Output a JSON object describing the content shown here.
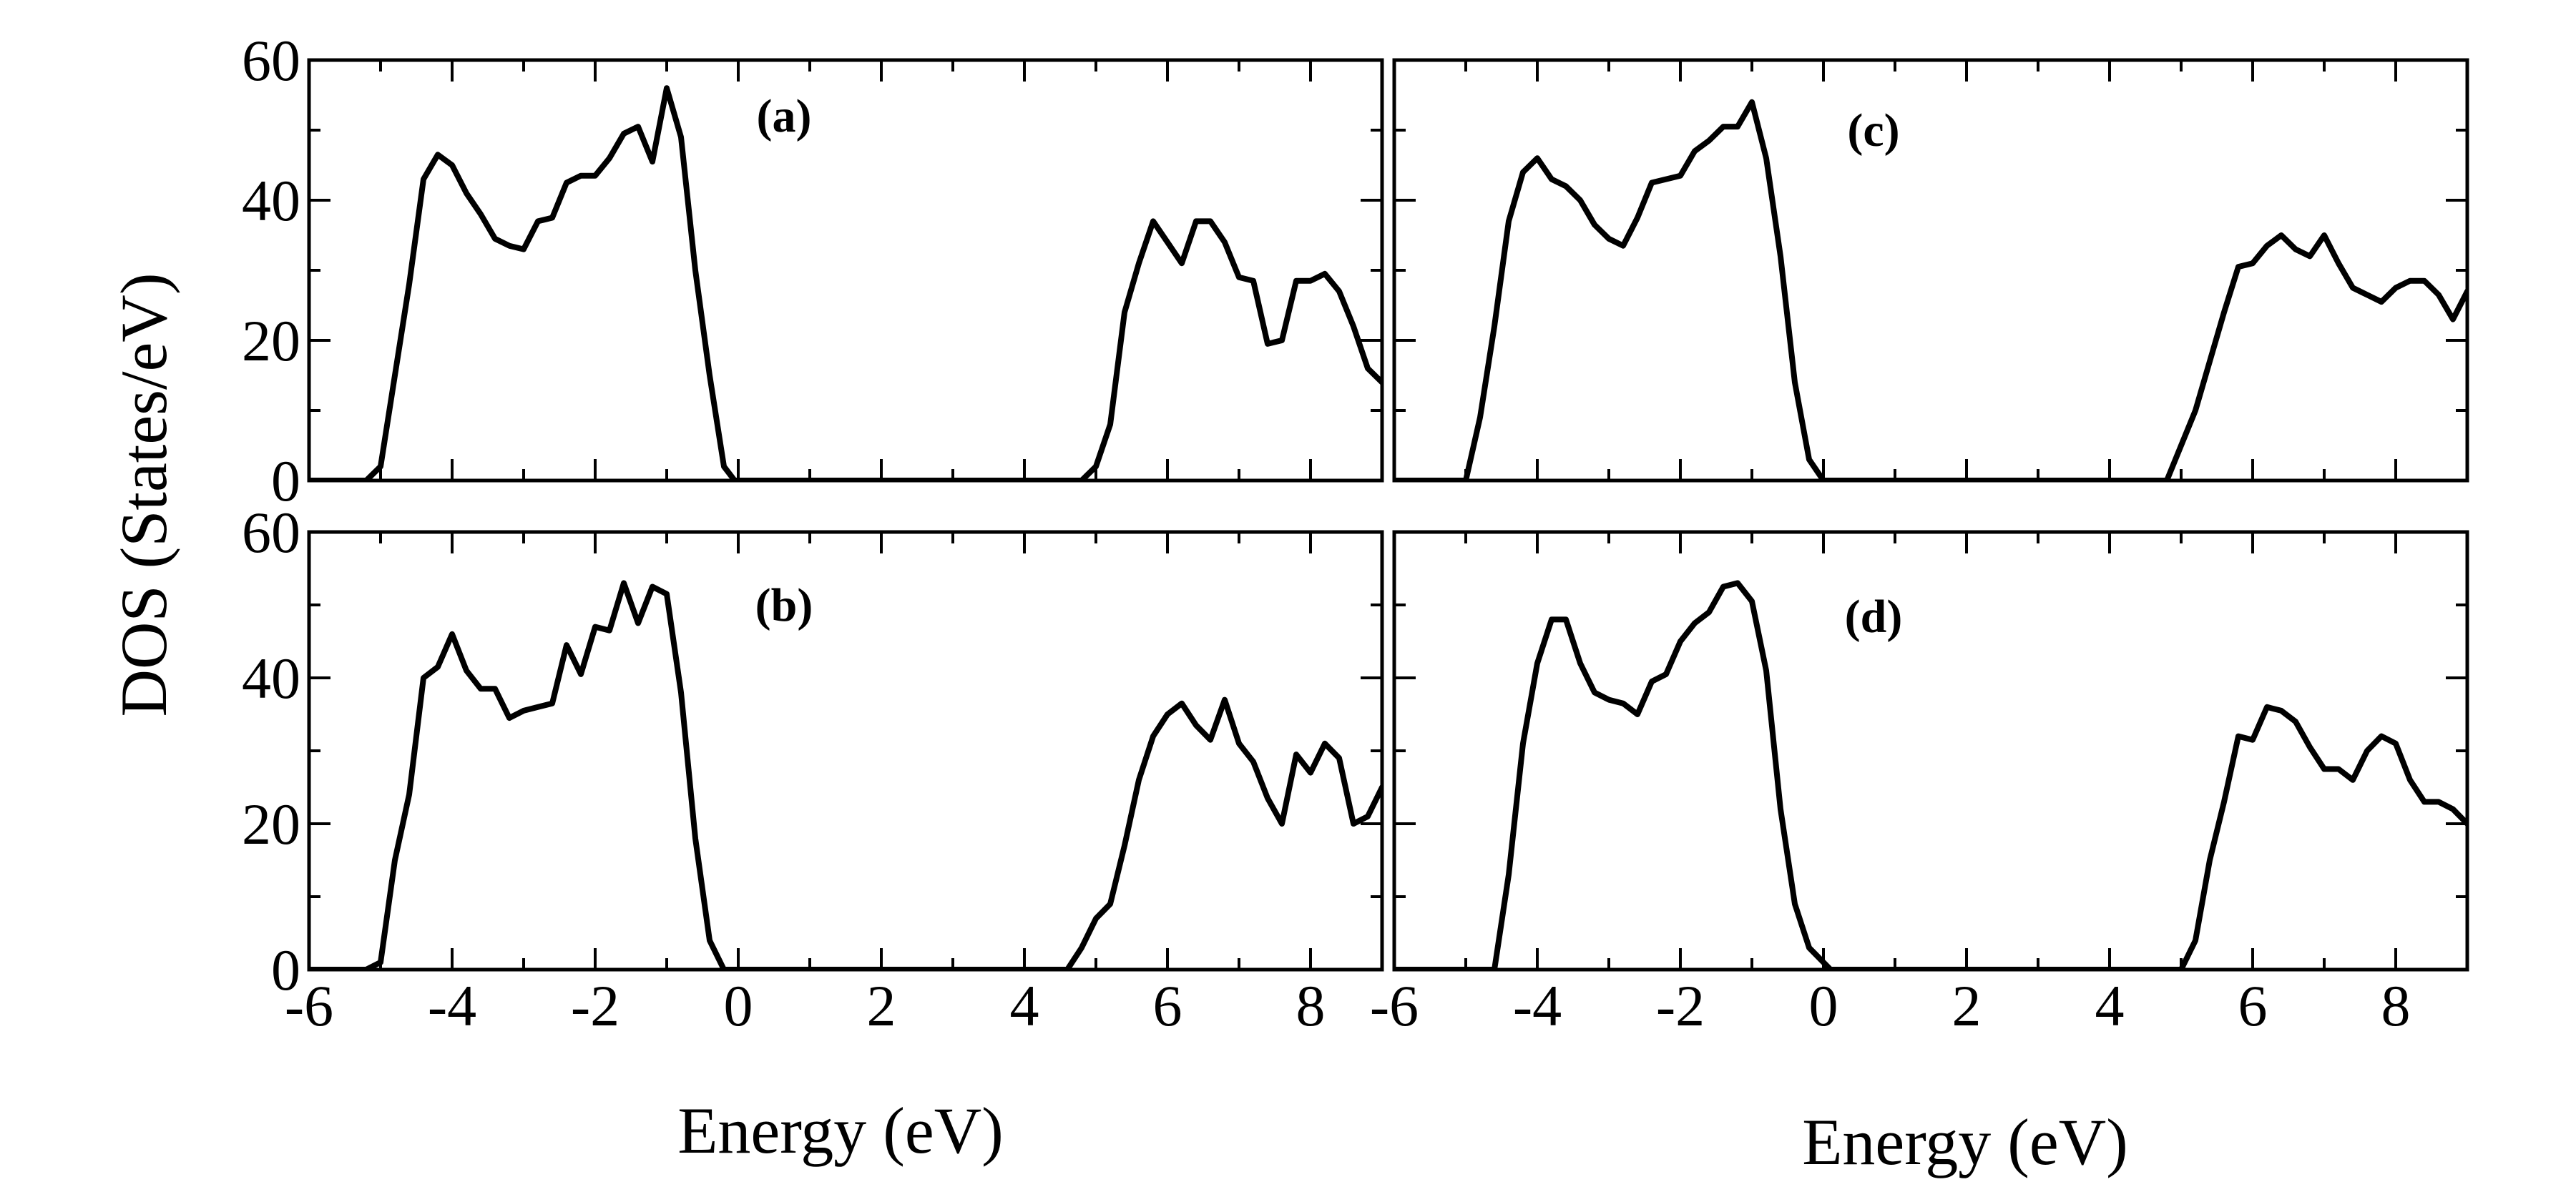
{
  "figure": {
    "ylabel": "DOS (States/eV)",
    "xlabel": "Energy (eV)"
  },
  "chart_data": [
    {
      "type": "line",
      "panel_label": "(a)",
      "xlabel": "",
      "ylabel": "DOS (States/eV)",
      "xlim": [
        -6,
        9
      ],
      "ylim": [
        0,
        60
      ],
      "xticks": [
        -6,
        -4,
        -2,
        0,
        2,
        4,
        6,
        8
      ],
      "yticks": [
        0,
        20,
        40,
        60
      ],
      "grid": false,
      "series": [
        {
          "name": "(a)",
          "x": [
            -6,
            -5.2,
            -5.0,
            -4.8,
            -4.6,
            -4.4,
            -4.2,
            -4.0,
            -3.8,
            -3.6,
            -3.4,
            -3.2,
            -3.0,
            -2.8,
            -2.6,
            -2.4,
            -2.2,
            -2.0,
            -1.8,
            -1.6,
            -1.4,
            -1.2,
            -1.0,
            -0.8,
            -0.6,
            -0.4,
            -0.2,
            -0.05,
            0.0,
            4.8,
            5.0,
            5.2,
            5.4,
            5.6,
            5.8,
            6.0,
            6.2,
            6.4,
            6.6,
            6.8,
            7.0,
            7.2,
            7.4,
            7.6,
            7.8,
            8.0,
            8.2,
            8.4,
            8.6,
            8.8,
            9.0
          ],
          "values": [
            0,
            0,
            2,
            15,
            28,
            43,
            46.5,
            45,
            41,
            38,
            34.5,
            33.5,
            33,
            37,
            37.5,
            42.5,
            43.5,
            43.5,
            46,
            49.5,
            50.5,
            45.5,
            56,
            49,
            30,
            15,
            2,
            0,
            0,
            0,
            2,
            8,
            24,
            31,
            37,
            34,
            31,
            37,
            37,
            34,
            29,
            28.5,
            19.5,
            20,
            28.5,
            28.5,
            29.5,
            27,
            22,
            16,
            14
          ]
        }
      ]
    },
    {
      "type": "line",
      "panel_label": "(b)",
      "xlabel": "Energy (eV)",
      "ylabel": "DOS (States/eV)",
      "xlim": [
        -6,
        9
      ],
      "ylim": [
        0,
        60
      ],
      "xticks": [
        -6,
        -4,
        -2,
        0,
        2,
        4,
        6,
        8
      ],
      "yticks": [
        0,
        20,
        40,
        60
      ],
      "grid": false,
      "series": [
        {
          "name": "(b)",
          "x": [
            -6,
            -5.2,
            -5.0,
            -4.8,
            -4.6,
            -4.4,
            -4.2,
            -4.0,
            -3.8,
            -3.6,
            -3.4,
            -3.2,
            -3.0,
            -2.8,
            -2.6,
            -2.4,
            -2.2,
            -2.0,
            -1.8,
            -1.6,
            -1.4,
            -1.2,
            -1.0,
            -0.8,
            -0.6,
            -0.4,
            -0.2,
            -0.05,
            0.0,
            4.6,
            4.8,
            5.0,
            5.2,
            5.4,
            5.6,
            5.8,
            6.0,
            6.2,
            6.4,
            6.6,
            6.8,
            7.0,
            7.2,
            7.4,
            7.6,
            7.8,
            8.0,
            8.2,
            8.4,
            8.6,
            8.8,
            9.0
          ],
          "values": [
            0,
            0,
            1,
            15,
            24,
            40,
            41.5,
            46,
            41,
            38.5,
            38.5,
            34.5,
            35.5,
            36,
            36.5,
            44.5,
            40.5,
            47,
            46.5,
            53,
            47.5,
            52.5,
            51.5,
            38,
            18,
            4,
            0,
            0,
            0,
            0,
            3,
            7,
            9,
            17,
            26,
            32,
            35,
            36.5,
            33.5,
            31.5,
            37,
            31,
            28.5,
            23.5,
            20,
            29.5,
            27,
            31,
            29,
            20,
            21,
            25
          ]
        }
      ]
    },
    {
      "type": "line",
      "panel_label": "(c)",
      "xlabel": "",
      "ylabel": "",
      "xlim": [
        -6,
        9
      ],
      "ylim": [
        0,
        60
      ],
      "xticks": [
        -6,
        -4,
        -2,
        0,
        2,
        4,
        6,
        8
      ],
      "yticks": [
        0,
        20,
        40,
        60
      ],
      "grid": false,
      "series": [
        {
          "name": "(c)",
          "x": [
            -6,
            -5.0,
            -4.8,
            -4.6,
            -4.4,
            -4.2,
            -4.0,
            -3.8,
            -3.6,
            -3.4,
            -3.2,
            -3.0,
            -2.8,
            -2.6,
            -2.4,
            -2.2,
            -2.0,
            -1.8,
            -1.6,
            -1.4,
            -1.2,
            -1.0,
            -0.8,
            -0.6,
            -0.4,
            -0.2,
            0.0,
            4.8,
            5.0,
            5.2,
            5.4,
            5.6,
            5.8,
            6.0,
            6.2,
            6.4,
            6.6,
            6.8,
            7.0,
            7.2,
            7.4,
            7.6,
            7.8,
            8.0,
            8.2,
            8.4,
            8.6,
            8.8,
            9.0
          ],
          "values": [
            0,
            0,
            9,
            22,
            37,
            44,
            46,
            43,
            42,
            40,
            36.5,
            34.5,
            33.5,
            37.5,
            42.5,
            43,
            43.5,
            47,
            48.5,
            50.5,
            50.5,
            54,
            46,
            32,
            14,
            3,
            0,
            0,
            5,
            10,
            17,
            24,
            30.5,
            31,
            33.5,
            35,
            33,
            32,
            35,
            31,
            27.5,
            26.5,
            25.5,
            27.5,
            28.5,
            28.5,
            26.5,
            23,
            27
          ]
        }
      ]
    },
    {
      "type": "line",
      "panel_label": "(d)",
      "xlabel": "Energy (eV)",
      "ylabel": "",
      "xlim": [
        -6,
        9
      ],
      "ylim": [
        0,
        60
      ],
      "xticks": [
        -6,
        -4,
        -2,
        0,
        2,
        4,
        6,
        8
      ],
      "yticks": [
        0,
        20,
        40,
        60
      ],
      "grid": false,
      "series": [
        {
          "name": "(d)",
          "x": [
            -6,
            -4.6,
            -4.4,
            -4.2,
            -4.0,
            -3.8,
            -3.6,
            -3.4,
            -3.2,
            -3.0,
            -2.8,
            -2.6,
            -2.4,
            -2.2,
            -2.0,
            -1.8,
            -1.6,
            -1.4,
            -1.2,
            -1.0,
            -0.8,
            -0.6,
            -0.4,
            -0.2,
            0.0,
            0.1,
            5.0,
            5.2,
            5.4,
            5.6,
            5.8,
            6.0,
            6.2,
            6.4,
            6.6,
            6.8,
            7.0,
            7.2,
            7.4,
            7.6,
            7.8,
            8.0,
            8.2,
            8.4,
            8.6,
            8.8,
            9.0
          ],
          "values": [
            0,
            0,
            13,
            31,
            42,
            48,
            48,
            42,
            38,
            37,
            36.5,
            35,
            39.5,
            40.5,
            45,
            47.5,
            49,
            52.5,
            53,
            50.5,
            41,
            22,
            9,
            3,
            1,
            0,
            0,
            4,
            15,
            23,
            32,
            31.5,
            36,
            35.5,
            34,
            30.5,
            27.5,
            27.5,
            26,
            30,
            32,
            31,
            26,
            23,
            23,
            22,
            20
          ]
        }
      ]
    }
  ]
}
